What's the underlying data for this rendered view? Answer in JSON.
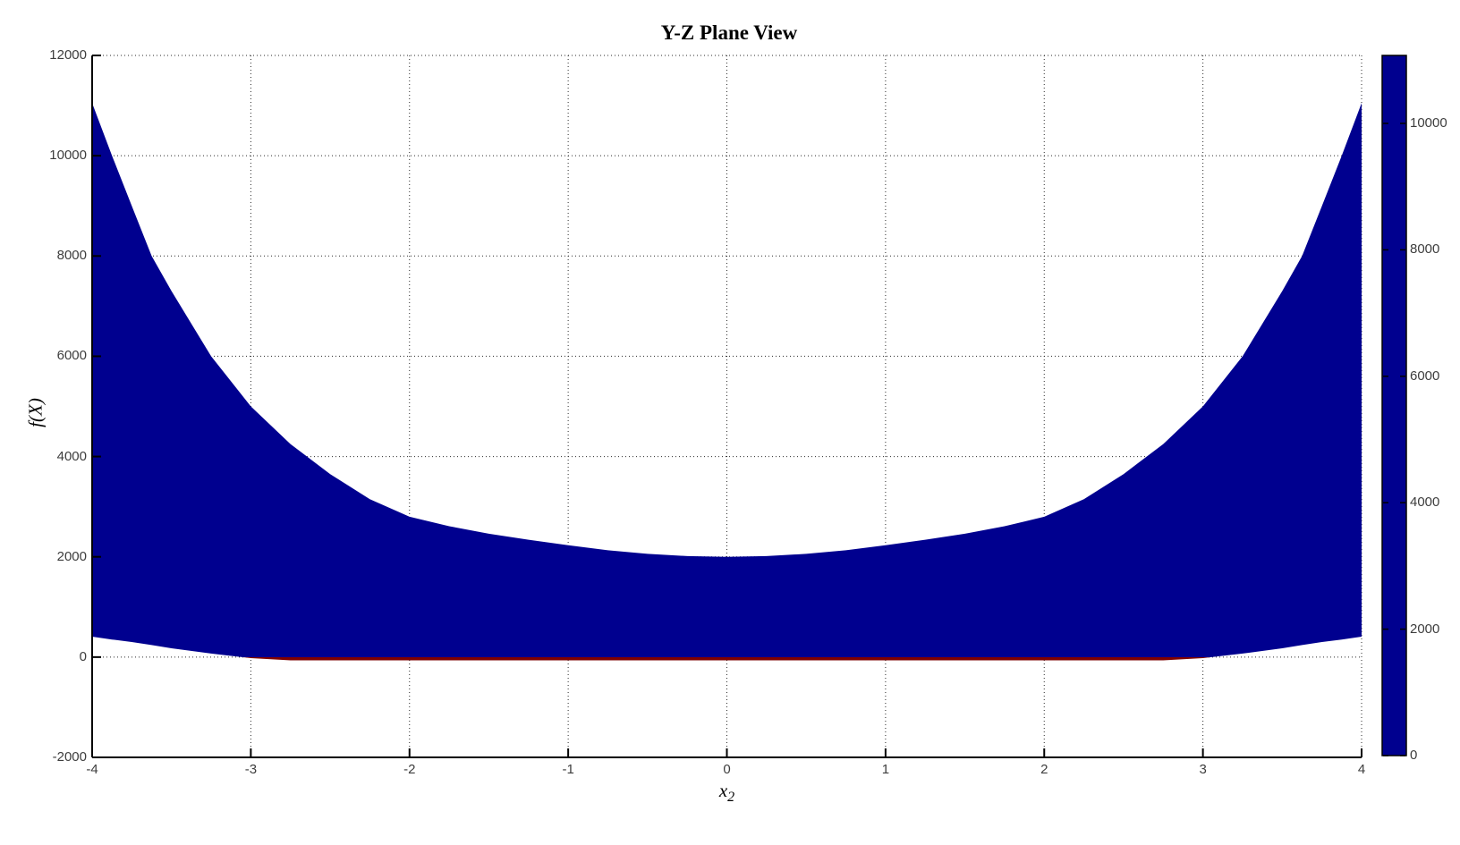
{
  "figure": {
    "background": "#FFFFFF"
  },
  "chart_data": {
    "type": "area",
    "title": "Y-Z Plane View",
    "xlabel": "x_2",
    "xlabel_base": "x",
    "xlabel_sub": "2",
    "ylabel": "f(X)",
    "xlim": [
      -4,
      4
    ],
    "ylim": [
      -2000,
      12000
    ],
    "xticks": [
      -4,
      -3,
      -2,
      -1,
      0,
      1,
      2,
      3,
      4
    ],
    "yticks": [
      -2000,
      0,
      2000,
      4000,
      6000,
      8000,
      10000,
      12000
    ],
    "grid": true,
    "grid_style": "dotted",
    "axis_color": "#000000",
    "tick_label_color": "#3D3D3D",
    "colormap": "jet",
    "colormap_stops": [
      {
        "v": 0.0,
        "color": "#00008F"
      },
      {
        "v": 0.125,
        "color": "#0000FF"
      },
      {
        "v": 0.375,
        "color": "#00FFFF"
      },
      {
        "v": 0.625,
        "color": "#FFFF00"
      },
      {
        "v": 0.875,
        "color": "#FF0000"
      },
      {
        "v": 1.0,
        "color": "#7F0000"
      }
    ],
    "colorbar": {
      "min": 0,
      "max": 11075,
      "ticks": [
        0,
        2000,
        4000,
        6000,
        8000,
        10000
      ]
    },
    "envelope": {
      "comment_free": "projected surface band: for each x2, f(X) spans f_min..f_max; fill color encodes f(X) via jet colormap",
      "x2": [
        -4,
        -3.875,
        -3.75,
        -3.625,
        -3.5,
        -3.25,
        -3,
        -2.75,
        -2.5,
        -2.25,
        -2,
        -1.75,
        -1.5,
        -1.25,
        -1,
        -0.75,
        -0.5,
        -0.25,
        0,
        0.25,
        0.5,
        0.75,
        1,
        1.25,
        1.5,
        1.75,
        2,
        2.25,
        2.5,
        2.75,
        3,
        3.25,
        3.5,
        3.625,
        3.75,
        3.875,
        4
      ],
      "f_max": [
        11050,
        10000,
        9000,
        8000,
        7300,
        6000,
        5000,
        4250,
        3650,
        3150,
        2800,
        2610,
        2460,
        2340,
        2230,
        2130,
        2060,
        2015,
        2000,
        2015,
        2060,
        2130,
        2230,
        2340,
        2460,
        2610,
        2800,
        3150,
        3650,
        4250,
        5000,
        6000,
        7300,
        8000,
        9000,
        10000,
        11050
      ],
      "f_min": [
        408,
        350,
        300,
        240,
        176,
        70,
        -20,
        -65,
        -65,
        -65,
        -65,
        -65,
        -65,
        -65,
        -65,
        -65,
        -65,
        -65,
        -65,
        -65,
        -65,
        -65,
        -65,
        -65,
        -65,
        -65,
        -65,
        -65,
        -65,
        -65,
        -20,
        70,
        176,
        240,
        300,
        350,
        408
      ]
    }
  }
}
